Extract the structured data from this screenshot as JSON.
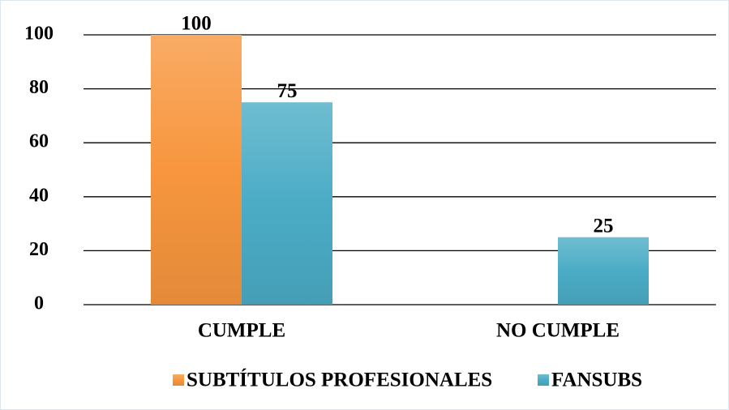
{
  "chart_data": {
    "type": "bar",
    "categories": [
      "CUMPLE",
      "NO CUMPLE"
    ],
    "series": [
      {
        "name": "SUBTÍTULOS PROFESIONALES",
        "color": "#f7963e",
        "values": [
          100,
          null
        ]
      },
      {
        "name": "FANSUBS",
        "color": "#4bacc6",
        "values": [
          75,
          25
        ]
      }
    ],
    "ylim": [
      0,
      100
    ],
    "yticks": [
      0,
      20,
      40,
      60,
      80,
      100
    ],
    "grid": true,
    "legend": "bottom"
  }
}
